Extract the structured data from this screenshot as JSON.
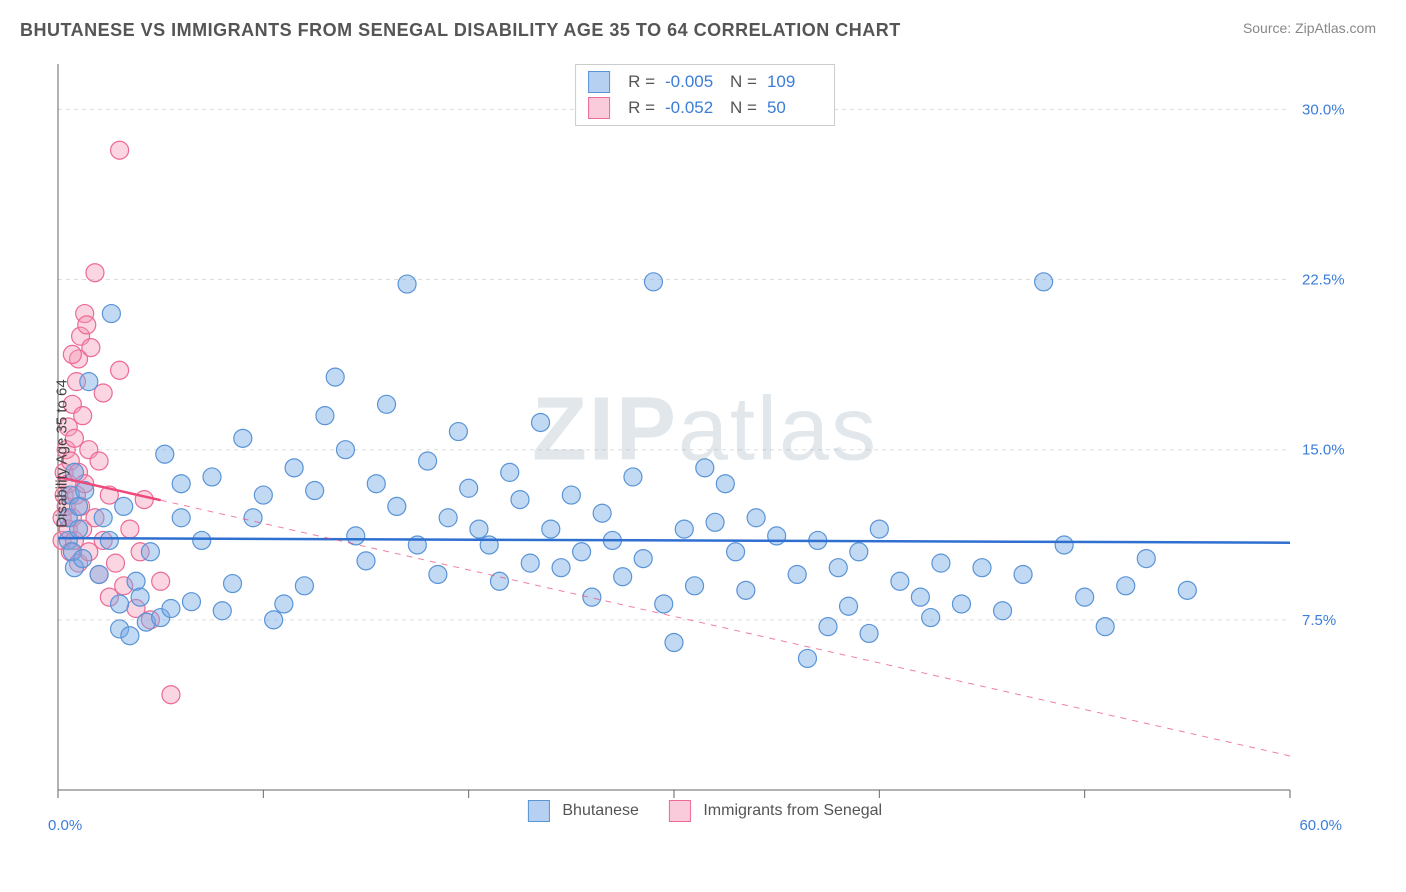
{
  "header": {
    "title": "BHUTANESE VS IMMIGRANTS FROM SENEGAL DISABILITY AGE 35 TO 64 CORRELATION CHART",
    "source": "Source: ZipAtlas.com"
  },
  "watermark": "ZIPatlas",
  "chart": {
    "type": "scatter",
    "ylabel": "Disability Age 35 to 64",
    "xlim": [
      0,
      60
    ],
    "ylim": [
      0,
      32
    ],
    "x_ticks": [
      0,
      10,
      20,
      30,
      40,
      50,
      60
    ],
    "x_tick_labels_shown": {
      "0": "0.0%",
      "60": "60.0%"
    },
    "y_ticks": [
      7.5,
      15.0,
      22.5,
      30.0
    ],
    "y_tick_labels": [
      "7.5%",
      "15.0%",
      "22.5%",
      "30.0%"
    ],
    "grid_color": "#dddddd",
    "axis_color": "#666666",
    "background_color": "#ffffff",
    "marker_radius": 9,
    "marker_stroke_width": 1.2,
    "series": [
      {
        "name": "Bhutanese",
        "fill": "rgba(120,170,230,0.45)",
        "stroke": "#5a94d6",
        "R": "-0.005",
        "N": "109",
        "trend": {
          "y1": 11.1,
          "y2": 10.9,
          "x1": 0,
          "x2": 60,
          "solid_until_x": 60,
          "stroke": "#2f6fd0",
          "width": 2.5
        },
        "points": [
          [
            0.5,
            11
          ],
          [
            0.5,
            12
          ],
          [
            0.6,
            13
          ],
          [
            0.7,
            10.5
          ],
          [
            0.8,
            9.8
          ],
          [
            0.8,
            14
          ],
          [
            1,
            11.5
          ],
          [
            1,
            12.5
          ],
          [
            1.2,
            10.2
          ],
          [
            1.3,
            13.2
          ],
          [
            1.5,
            18
          ],
          [
            2,
            9.5
          ],
          [
            2.2,
            12
          ],
          [
            2.5,
            11
          ],
          [
            2.6,
            21
          ],
          [
            3,
            8.2
          ],
          [
            3,
            7.1
          ],
          [
            3.2,
            12.5
          ],
          [
            3.5,
            6.8
          ],
          [
            3.8,
            9.2
          ],
          [
            4,
            8.5
          ],
          [
            4.3,
            7.4
          ],
          [
            4.5,
            10.5
          ],
          [
            5,
            7.6
          ],
          [
            5.2,
            14.8
          ],
          [
            5.5,
            8
          ],
          [
            6,
            12
          ],
          [
            6,
            13.5
          ],
          [
            6.5,
            8.3
          ],
          [
            7,
            11
          ],
          [
            7.5,
            13.8
          ],
          [
            8,
            7.9
          ],
          [
            8.5,
            9.1
          ],
          [
            9,
            15.5
          ],
          [
            9.5,
            12
          ],
          [
            10,
            13
          ],
          [
            10.5,
            7.5
          ],
          [
            11,
            8.2
          ],
          [
            11.5,
            14.2
          ],
          [
            12,
            9
          ],
          [
            12.5,
            13.2
          ],
          [
            13,
            16.5
          ],
          [
            13.5,
            18.2
          ],
          [
            14,
            15
          ],
          [
            14.5,
            11.2
          ],
          [
            15,
            10.1
          ],
          [
            15.5,
            13.5
          ],
          [
            16,
            17
          ],
          [
            16.5,
            12.5
          ],
          [
            17,
            22.3
          ],
          [
            17.5,
            10.8
          ],
          [
            18,
            14.5
          ],
          [
            18.5,
            9.5
          ],
          [
            19,
            12
          ],
          [
            19.5,
            15.8
          ],
          [
            20,
            13.3
          ],
          [
            20.5,
            11.5
          ],
          [
            21,
            10.8
          ],
          [
            21.5,
            9.2
          ],
          [
            22,
            14
          ],
          [
            22.5,
            12.8
          ],
          [
            23,
            10
          ],
          [
            23.5,
            16.2
          ],
          [
            24,
            11.5
          ],
          [
            24.5,
            9.8
          ],
          [
            25,
            13
          ],
          [
            25.5,
            10.5
          ],
          [
            26,
            8.5
          ],
          [
            26.5,
            12.2
          ],
          [
            27,
            11
          ],
          [
            27.5,
            9.4
          ],
          [
            28,
            13.8
          ],
          [
            28.5,
            10.2
          ],
          [
            29,
            22.4
          ],
          [
            29.5,
            8.2
          ],
          [
            30,
            6.5
          ],
          [
            30.5,
            11.5
          ],
          [
            31,
            9
          ],
          [
            31.5,
            14.2
          ],
          [
            32,
            11.8
          ],
          [
            32.5,
            13.5
          ],
          [
            33,
            10.5
          ],
          [
            33.5,
            8.8
          ],
          [
            34,
            12
          ],
          [
            35,
            11.2
          ],
          [
            36,
            9.5
          ],
          [
            36.5,
            5.8
          ],
          [
            37,
            11
          ],
          [
            37.5,
            7.2
          ],
          [
            38,
            9.8
          ],
          [
            38.5,
            8.1
          ],
          [
            39,
            10.5
          ],
          [
            39.5,
            6.9
          ],
          [
            40,
            11.5
          ],
          [
            41,
            9.2
          ],
          [
            42,
            8.5
          ],
          [
            42.5,
            7.6
          ],
          [
            43,
            10
          ],
          [
            44,
            8.2
          ],
          [
            45,
            9.8
          ],
          [
            46,
            7.9
          ],
          [
            47,
            9.5
          ],
          [
            48,
            22.4
          ],
          [
            49,
            10.8
          ],
          [
            50,
            8.5
          ],
          [
            51,
            7.2
          ],
          [
            52,
            9
          ],
          [
            53,
            10.2
          ],
          [
            55,
            8.8
          ]
        ]
      },
      {
        "name": "Immigrants from Senegal",
        "fill": "rgba(245,150,180,0.40)",
        "stroke": "#ec6a94",
        "R": "-0.052",
        "N": "50",
        "trend": {
          "y1": 13.8,
          "y2": 1.5,
          "x1": 0,
          "x2": 60,
          "solid_until_x": 5,
          "stroke": "#ec4a7a",
          "width": 2.5
        },
        "points": [
          [
            0.2,
            11
          ],
          [
            0.2,
            12
          ],
          [
            0.3,
            13
          ],
          [
            0.3,
            14
          ],
          [
            0.4,
            15
          ],
          [
            0.4,
            12.5
          ],
          [
            0.5,
            11.5
          ],
          [
            0.5,
            13.5
          ],
          [
            0.5,
            16
          ],
          [
            0.6,
            10.5
          ],
          [
            0.6,
            14.5
          ],
          [
            0.7,
            12
          ],
          [
            0.7,
            17
          ],
          [
            0.8,
            11
          ],
          [
            0.8,
            15.5
          ],
          [
            0.9,
            13
          ],
          [
            0.9,
            18
          ],
          [
            1,
            10
          ],
          [
            1,
            14
          ],
          [
            1,
            19
          ],
          [
            1.1,
            12.5
          ],
          [
            1.1,
            20
          ],
          [
            1.2,
            11.5
          ],
          [
            1.2,
            16.5
          ],
          [
            1.3,
            13.5
          ],
          [
            1.3,
            21
          ],
          [
            1.5,
            10.5
          ],
          [
            1.5,
            15
          ],
          [
            1.6,
            19.5
          ],
          [
            1.8,
            12
          ],
          [
            1.8,
            22.8
          ],
          [
            2,
            9.5
          ],
          [
            2,
            14.5
          ],
          [
            2.2,
            11
          ],
          [
            2.2,
            17.5
          ],
          [
            2.5,
            8.5
          ],
          [
            2.5,
            13
          ],
          [
            2.8,
            10
          ],
          [
            3,
            18.5
          ],
          [
            3,
            28.2
          ],
          [
            3.2,
            9
          ],
          [
            3.5,
            11.5
          ],
          [
            3.8,
            8
          ],
          [
            4,
            10.5
          ],
          [
            4.2,
            12.8
          ],
          [
            4.5,
            7.5
          ],
          [
            5,
            9.2
          ],
          [
            5.5,
            4.2
          ],
          [
            1.4,
            20.5
          ],
          [
            0.7,
            19.2
          ]
        ]
      }
    ],
    "bottom_legend": [
      {
        "label": "Bhutanese",
        "fill": "rgba(120,170,230,0.55)",
        "stroke": "#5a94d6"
      },
      {
        "label": "Immigrants from Senegal",
        "fill": "rgba(245,160,190,0.55)",
        "stroke": "#ec6a94"
      }
    ]
  }
}
